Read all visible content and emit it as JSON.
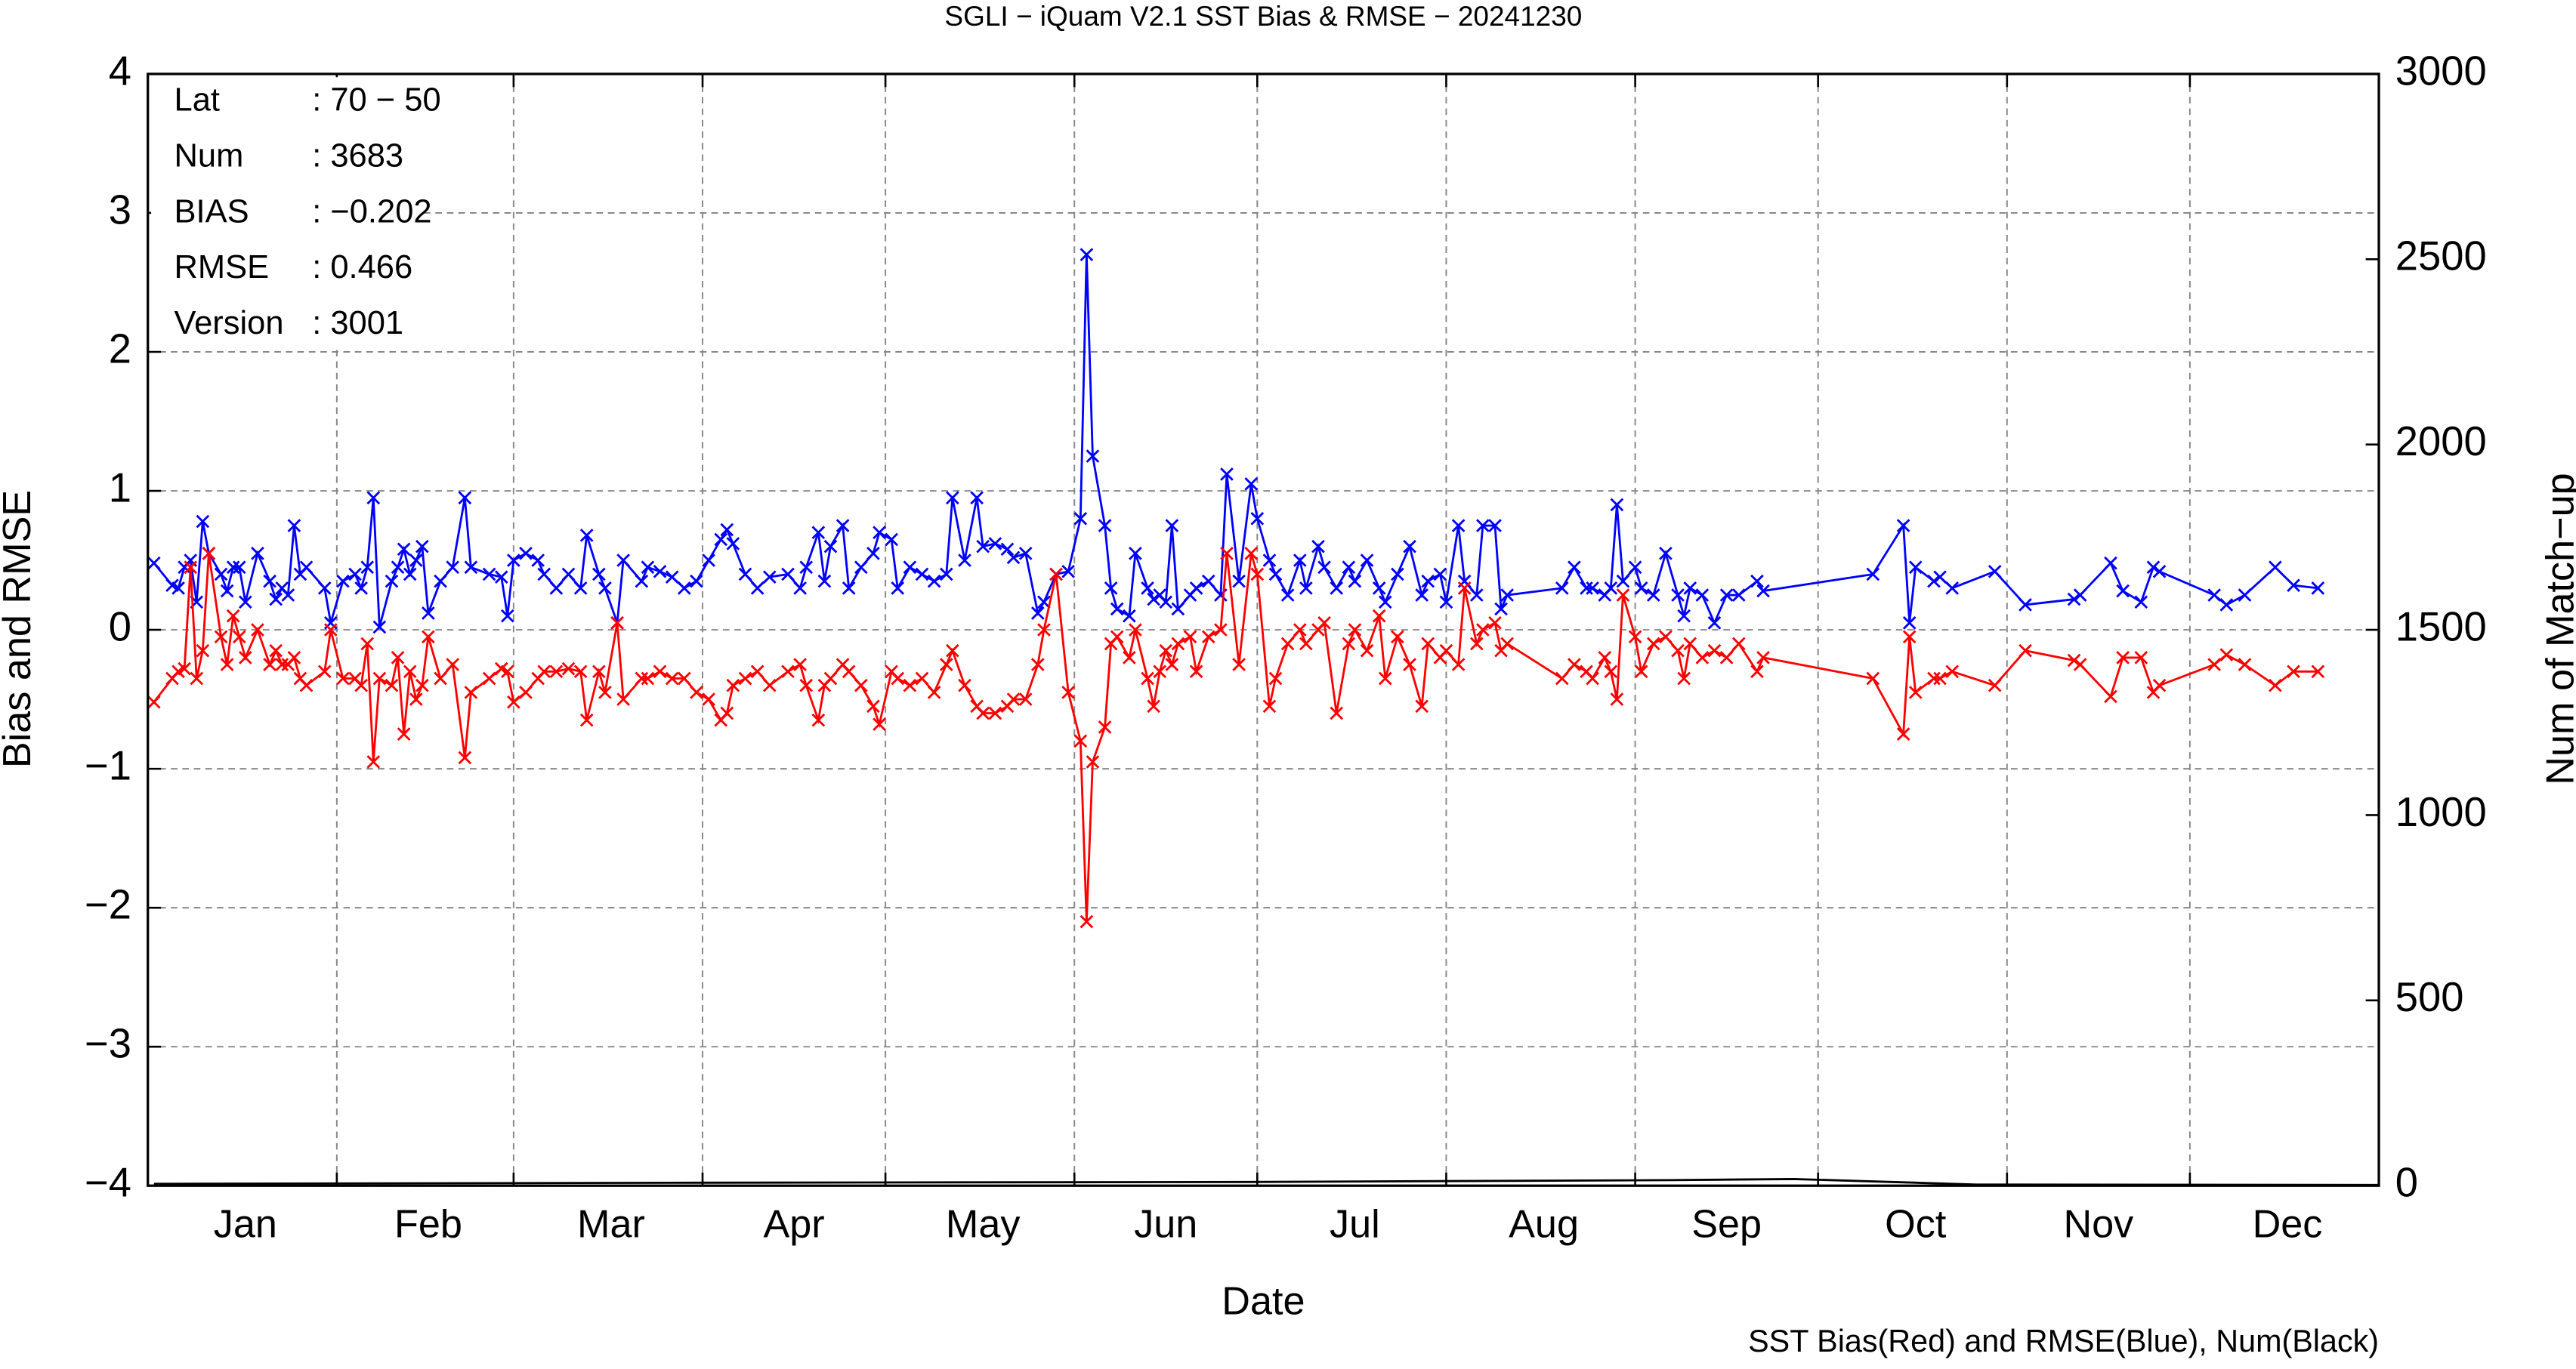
{
  "chart_data": {
    "type": "line",
    "title": "SGLI − iQuam V2.1 SST Bias & RMSE  − 20241230",
    "xlabel": "Date",
    "ylabel": "Bias and RMSE",
    "y2label": "Num of Match−up",
    "note": "SST Bias(Red) and RMSE(Blue), Num(Black)",
    "info": [
      [
        "Lat",
        ": 70 − 50"
      ],
      [
        "Num",
        ": 3683"
      ],
      [
        "BIAS",
        ": −0.202"
      ],
      [
        "RMSE",
        ": 0.466"
      ],
      [
        "Version",
        ": 3001"
      ]
    ],
    "grid": true,
    "xlim": [
      0,
      366
    ],
    "xticks": [
      {
        "value": 16,
        "label": "Jan"
      },
      {
        "value": 46,
        "label": "Feb"
      },
      {
        "value": 76,
        "label": "Mar"
      },
      {
        "value": 106,
        "label": "Apr"
      },
      {
        "value": 137,
        "label": "May"
      },
      {
        "value": 167,
        "label": "Jun"
      },
      {
        "value": 198,
        "label": "Jul"
      },
      {
        "value": 229,
        "label": "Aug"
      },
      {
        "value": 259,
        "label": "Sep"
      },
      {
        "value": 290,
        "label": "Oct"
      },
      {
        "value": 320,
        "label": "Nov"
      },
      {
        "value": 351,
        "label": "Dec"
      }
    ],
    "xgrid": [
      31,
      60,
      91,
      121,
      152,
      182,
      213,
      244,
      274,
      305,
      335
    ],
    "ylim": [
      -4,
      4
    ],
    "yticks": [
      {
        "value": -4,
        "label": "−4"
      },
      {
        "value": -3,
        "label": "−3"
      },
      {
        "value": -2,
        "label": "−2"
      },
      {
        "value": -1,
        "label": "−1"
      },
      0,
      1,
      2,
      3,
      4
    ],
    "y2lim": [
      0,
      3000
    ],
    "y2ticks": [
      0,
      500,
      1000,
      1500,
      2000,
      2500,
      3000
    ],
    "x": [
      1,
      4,
      5,
      6,
      7,
      8,
      9,
      10,
      12,
      13,
      14,
      15,
      16,
      18,
      20,
      21,
      22,
      23,
      24,
      25,
      26,
      29,
      30,
      32,
      34,
      35,
      36,
      37,
      38,
      40,
      41,
      42,
      43,
      44,
      45,
      46,
      48,
      50,
      52,
      53,
      56,
      58,
      59,
      60,
      62,
      64,
      65,
      67,
      69,
      71,
      72,
      74,
      75,
      77,
      78,
      81,
      82,
      84,
      86,
      88,
      90,
      92,
      94,
      95,
      96,
      98,
      100,
      102,
      105,
      107,
      108,
      110,
      111,
      112,
      114,
      115,
      117,
      119,
      120,
      122,
      123,
      125,
      127,
      129,
      131,
      132,
      134,
      136,
      137,
      139,
      141,
      142,
      144,
      146,
      147,
      149,
      151,
      153,
      154,
      155,
      157,
      158,
      159,
      161,
      162,
      164,
      165,
      166,
      167,
      168,
      169,
      171,
      172,
      174,
      176,
      177,
      179,
      181,
      182,
      184,
      185,
      187,
      189,
      190,
      192,
      193,
      195,
      197,
      198,
      200,
      202,
      203,
      205,
      207,
      209,
      210,
      212,
      213,
      215,
      216,
      218,
      219,
      221,
      222,
      223,
      232,
      234,
      236,
      237,
      239,
      240,
      241,
      242,
      244,
      245,
      247,
      249,
      251,
      252,
      253,
      255,
      257,
      259,
      261,
      264,
      265,
      283,
      288,
      289,
      290,
      293,
      294,
      296,
      303,
      308,
      316,
      317,
      322,
      324,
      327,
      329,
      330,
      339,
      341,
      344,
      349,
      352,
      356
    ],
    "series": [
      {
        "color": "#0000ff",
        "values": [
          0.48,
          0.32,
          0.3,
          0.45,
          0.5,
          0.2,
          0.78,
          0.55,
          0.4,
          0.28,
          0.45,
          0.45,
          0.2,
          0.55,
          0.35,
          0.22,
          0.3,
          0.25,
          0.75,
          0.4,
          0.45,
          0.3,
          0.05,
          0.35,
          0.4,
          0.3,
          0.45,
          0.95,
          0.02,
          0.35,
          0.45,
          0.58,
          0.4,
          0.5,
          0.6,
          0.12,
          0.35,
          0.45,
          0.95,
          0.45,
          0.4,
          0.38,
          0.1,
          0.5,
          0.55,
          0.5,
          0.4,
          0.3,
          0.4,
          0.3,
          0.68,
          0.4,
          0.3,
          0.05,
          0.5,
          0.35,
          0.45,
          0.42,
          0.38,
          0.3,
          0.35,
          0.5,
          0.65,
          0.72,
          0.62,
          0.4,
          0.3,
          0.38,
          0.4,
          0.3,
          0.45,
          0.7,
          0.35,
          0.6,
          0.75,
          0.3,
          0.45,
          0.55,
          0.7,
          0.65,
          0.3,
          0.45,
          0.4,
          0.35,
          0.4,
          0.95,
          0.5,
          0.95,
          0.6,
          0.62,
          0.58,
          0.52,
          0.55,
          0.12,
          0.2,
          0.4,
          0.42,
          0.8,
          2.7,
          1.25,
          0.75,
          0.3,
          0.15,
          0.1,
          0.55,
          0.3,
          0.22,
          0.25,
          0.2,
          0.75,
          0.15,
          0.25,
          0.3,
          0.35,
          0.25,
          1.12,
          0.35,
          1.05,
          0.8,
          0.5,
          0.4,
          0.25,
          0.5,
          0.3,
          0.6,
          0.45,
          0.3,
          0.45,
          0.35,
          0.5,
          0.3,
          0.2,
          0.4,
          0.6,
          0.25,
          0.35,
          0.4,
          0.2,
          0.75,
          0.35,
          0.25,
          0.75,
          0.75,
          0.15,
          0.25,
          0.3,
          0.45,
          0.3,
          0.3,
          0.25,
          0.3,
          0.9,
          0.35,
          0.45,
          0.3,
          0.25,
          0.55,
          0.25,
          0.1,
          0.3,
          0.25,
          0.05,
          0.25,
          0.25,
          0.35,
          0.28,
          0.4,
          0.75,
          0.05,
          0.45,
          0.35,
          0.38,
          0.3,
          0.42,
          0.18,
          0.22,
          0.25,
          0.48,
          0.28,
          0.2,
          0.45,
          0.42,
          0.25,
          0.18,
          0.25,
          0.45,
          0.32,
          0.3
        ]
      },
      {
        "color": "#ff0000",
        "values": [
          -0.52,
          -0.35,
          -0.3,
          -0.28,
          0.45,
          -0.35,
          -0.15,
          0.55,
          -0.05,
          -0.25,
          0.1,
          -0.05,
          -0.2,
          0.0,
          -0.25,
          -0.15,
          -0.25,
          -0.25,
          -0.2,
          -0.35,
          -0.4,
          -0.3,
          0.0,
          -0.35,
          -0.35,
          -0.4,
          -0.1,
          -0.95,
          -0.35,
          -0.4,
          -0.2,
          -0.75,
          -0.3,
          -0.5,
          -0.4,
          -0.05,
          -0.35,
          -0.25,
          -0.92,
          -0.45,
          -0.35,
          -0.28,
          -0.3,
          -0.52,
          -0.45,
          -0.35,
          -0.3,
          -0.3,
          -0.28,
          -0.3,
          -0.65,
          -0.3,
          -0.45,
          0.05,
          -0.5,
          -0.35,
          -0.35,
          -0.3,
          -0.35,
          -0.35,
          -0.45,
          -0.5,
          -0.65,
          -0.6,
          -0.4,
          -0.35,
          -0.3,
          -0.4,
          -0.3,
          -0.25,
          -0.4,
          -0.65,
          -0.4,
          -0.35,
          -0.25,
          -0.3,
          -0.4,
          -0.55,
          -0.68,
          -0.3,
          -0.35,
          -0.4,
          -0.35,
          -0.45,
          -0.25,
          -0.15,
          -0.4,
          -0.55,
          -0.6,
          -0.6,
          -0.55,
          -0.5,
          -0.5,
          -0.25,
          0.0,
          0.4,
          -0.45,
          -0.8,
          -2.1,
          -0.95,
          -0.7,
          -0.1,
          -0.05,
          -0.2,
          0.0,
          -0.35,
          -0.55,
          -0.3,
          -0.15,
          -0.25,
          -0.1,
          -0.05,
          -0.3,
          -0.05,
          0.0,
          0.55,
          -0.25,
          0.55,
          0.4,
          -0.55,
          -0.35,
          -0.1,
          0.0,
          -0.1,
          0.0,
          0.05,
          -0.6,
          -0.1,
          0.0,
          -0.15,
          0.1,
          -0.35,
          -0.05,
          -0.25,
          -0.55,
          -0.1,
          -0.2,
          -0.15,
          -0.25,
          0.3,
          -0.1,
          0.0,
          0.05,
          -0.15,
          -0.1,
          -0.35,
          -0.25,
          -0.3,
          -0.35,
          -0.2,
          -0.3,
          -0.5,
          0.25,
          -0.05,
          -0.3,
          -0.1,
          -0.05,
          -0.15,
          -0.35,
          -0.1,
          -0.2,
          -0.15,
          -0.2,
          -0.1,
          -0.3,
          -0.2,
          -0.35,
          -0.75,
          -0.05,
          -0.45,
          -0.35,
          -0.35,
          -0.3,
          -0.4,
          -0.15,
          -0.22,
          -0.25,
          -0.48,
          -0.2,
          -0.2,
          -0.45,
          -0.4,
          -0.25,
          -0.18,
          -0.25,
          -0.4,
          -0.3,
          -0.3
        ]
      },
      {
        "color": "#000000",
        "axis": "y2",
        "x": [
          1,
          90,
          180,
          250,
          270,
          300,
          366
        ],
        "values": [
          5,
          8,
          10,
          15,
          18,
          3,
          2
        ]
      }
    ]
  }
}
